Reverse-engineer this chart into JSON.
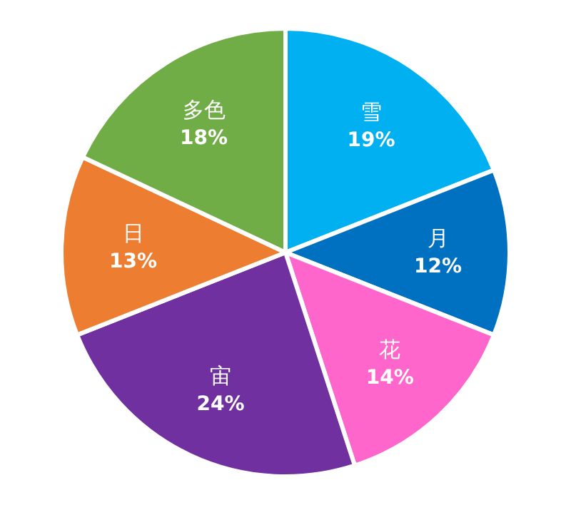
{
  "chart_data": {
    "type": "pie",
    "categories": [
      "雪",
      "月",
      "花",
      "宙",
      "日",
      "多色"
    ],
    "values": [
      19,
      12,
      14,
      24,
      13,
      18
    ],
    "colors": [
      "#00b0f0",
      "#0070c0",
      "#ff66cc",
      "#7030a0",
      "#ed7d31",
      "#70ad47"
    ],
    "value_labels": [
      "19%",
      "12%",
      "14%",
      "24%",
      "13%",
      "18%"
    ]
  }
}
